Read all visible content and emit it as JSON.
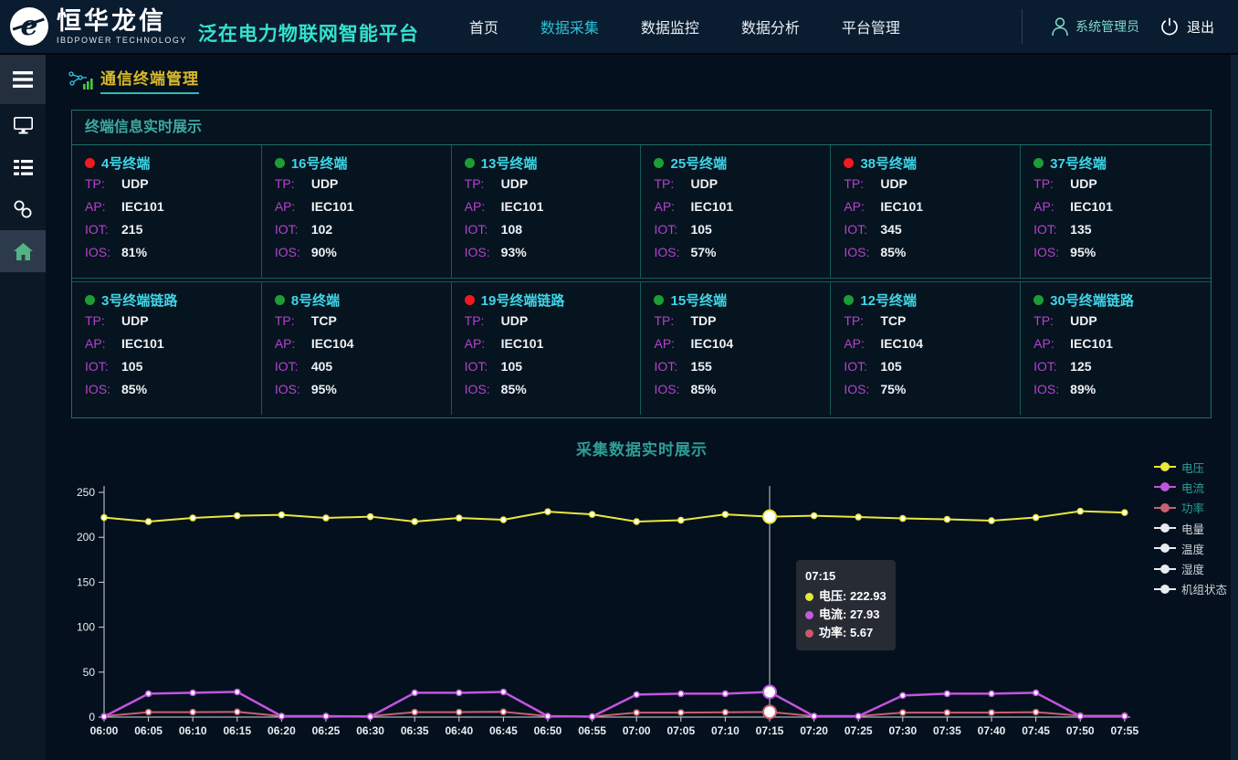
{
  "header": {
    "logo": {
      "title": "恒华龙信",
      "subtitle": "IBDPOWER TECHNOLOGY"
    },
    "platform_title": "泛在电力物联网智能平台",
    "nav": [
      {
        "label": "首页",
        "active": false
      },
      {
        "label": "数据采集",
        "active": true
      },
      {
        "label": "数据监控",
        "active": false
      },
      {
        "label": "数据分析",
        "active": false
      },
      {
        "label": "平台管理",
        "active": false
      }
    ],
    "user_name": "系统管理员",
    "logout_label": "退出"
  },
  "sidebar": {
    "icons": [
      "hamburger-menu-icon",
      "monitor-icon",
      "list-icon",
      "link-icon",
      "home-icon"
    ]
  },
  "breadcrumb": {
    "label": "通信终端管理"
  },
  "terminal_panel": {
    "title": "终端信息实时展示",
    "field_labels": {
      "tp": "TP:",
      "ap": "AP:",
      "iot": "IOT:",
      "ios": "IOS:"
    },
    "terminals": [
      {
        "name": "4号终端",
        "status": "red",
        "tp": "UDP",
        "ap": "IEC101",
        "iot": "215",
        "ios": "81%"
      },
      {
        "name": "16号终端",
        "status": "green",
        "tp": "UDP",
        "ap": "IEC101",
        "iot": "102",
        "ios": "90%"
      },
      {
        "name": "13号终端",
        "status": "green",
        "tp": "UDP",
        "ap": "IEC101",
        "iot": "108",
        "ios": "93%"
      },
      {
        "name": "25号终端",
        "status": "green",
        "tp": "UDP",
        "ap": "IEC101",
        "iot": "105",
        "ios": "57%"
      },
      {
        "name": "38号终端",
        "status": "red",
        "tp": "UDP",
        "ap": "IEC101",
        "iot": "345",
        "ios": "85%"
      },
      {
        "name": "37号终端",
        "status": "green",
        "tp": "UDP",
        "ap": "IEC101",
        "iot": "135",
        "ios": "95%"
      },
      {
        "name": "3号终端链路",
        "status": "green",
        "tp": "UDP",
        "ap": "IEC101",
        "iot": "105",
        "ios": "85%"
      },
      {
        "name": "8号终端",
        "status": "green",
        "tp": "TCP",
        "ap": "IEC104",
        "iot": "405",
        "ios": "95%"
      },
      {
        "name": "19号终端链路",
        "status": "red",
        "tp": "UDP",
        "ap": "IEC101",
        "iot": "105",
        "ios": "85%"
      },
      {
        "name": "15号终端",
        "status": "green",
        "tp": "TDP",
        "ap": "IEC104",
        "iot": "155",
        "ios": "85%"
      },
      {
        "name": "12号终端",
        "status": "green",
        "tp": "TCP",
        "ap": "IEC104",
        "iot": "105",
        "ios": "75%"
      },
      {
        "name": "30号终端链路",
        "status": "green",
        "tp": "UDP",
        "ap": "IEC101",
        "iot": "125",
        "ios": "89%"
      }
    ]
  },
  "chart_section": {
    "title": "采集数据实时展示"
  },
  "chart_data": {
    "type": "line",
    "title": "采集数据实时展示",
    "x": [
      "06:00",
      "06:05",
      "06:10",
      "06:15",
      "06:20",
      "06:25",
      "06:30",
      "06:35",
      "06:40",
      "06:45",
      "06:50",
      "06:55",
      "07:00",
      "07:05",
      "07:10",
      "07:15",
      "07:20",
      "07:25",
      "07:30",
      "07:35",
      "07:40",
      "07:45",
      "07:50",
      "07:55"
    ],
    "series": [
      {
        "name": "电压",
        "color": "#e8e83e",
        "values": [
          222,
          217.5,
          221.5,
          224,
          225,
          221.5,
          223,
          217.5,
          221.5,
          219.5,
          228.5,
          225.5,
          217.5,
          219,
          225.5,
          222.93,
          224,
          222.5,
          221,
          220,
          218.5,
          222,
          229,
          227.5
        ]
      },
      {
        "name": "电流",
        "color": "#c155e0",
        "values": [
          0.5,
          26,
          27,
          28,
          1,
          1,
          0.5,
          27,
          27,
          28,
          1,
          0.5,
          25,
          26,
          26,
          27.93,
          1,
          1,
          24,
          26,
          26,
          27,
          1,
          1
        ]
      },
      {
        "name": "功率",
        "color": "#ca5f70",
        "values": [
          1,
          5.5,
          5.5,
          5.8,
          1,
          1,
          1,
          5.5,
          5.5,
          5.8,
          1,
          0.5,
          5,
          5,
          5.3,
          5.67,
          1,
          1,
          5,
          5,
          5,
          5.5,
          1.5,
          1.5
        ]
      }
    ],
    "legend": [
      {
        "name": "电压",
        "color": "#e8e83e",
        "active": true
      },
      {
        "name": "电流",
        "color": "#c155e0",
        "active": true
      },
      {
        "name": "功率",
        "color": "#ca5f70",
        "active": true
      },
      {
        "name": "电量",
        "color": "#e9ebee",
        "active": false
      },
      {
        "name": "温度",
        "color": "#e9ebee",
        "active": false
      },
      {
        "name": "湿度",
        "color": "#e9ebee",
        "active": false
      },
      {
        "name": "机组状态",
        "color": "#e9ebee",
        "active": false
      }
    ],
    "legend_position": "right",
    "grid": false,
    "ylim": [
      0,
      250
    ],
    "yticks": [
      0,
      50,
      100,
      150,
      200,
      250
    ],
    "axis_pointer": {
      "index": 15,
      "label": "07:15"
    },
    "tooltip": {
      "title": "07:15",
      "rows": [
        {
          "name": "电压",
          "value": "222.93",
          "color": "#e5e838"
        },
        {
          "name": "电流",
          "value": "27.93",
          "color": "#c45ae0"
        },
        {
          "name": "功率",
          "value": "5.67",
          "color": "#c75b68"
        }
      ]
    },
    "colors_note": {
      "active_legend_text": "#2d9e94",
      "inactive_legend_text": "#ccd3da",
      "axis_text": "#e8edf3"
    }
  }
}
